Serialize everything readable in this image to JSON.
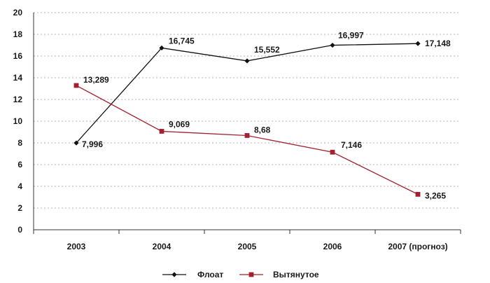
{
  "chart_data": {
    "type": "line",
    "categories": [
      "2003",
      "2004",
      "2005",
      "2006",
      "2007 (прогноз)"
    ],
    "series": [
      {
        "name": "Флоат",
        "values": [
          7.996,
          16.745,
          15.552,
          16.997,
          17.148
        ],
        "labels": [
          "7,996",
          "16,745",
          "15,552",
          "16,997",
          "17,148"
        ],
        "color": "#111111",
        "marker": "diamond"
      },
      {
        "name": "Вытянутое",
        "values": [
          13.289,
          9.069,
          8.68,
          7.146,
          3.265
        ],
        "labels": [
          "13,289",
          "9,069",
          "8,68",
          "7,146",
          "3,265"
        ],
        "color": "#a3202f",
        "marker": "square"
      }
    ],
    "ylim": [
      0,
      20
    ],
    "yticks": [
      0,
      2,
      4,
      6,
      8,
      10,
      12,
      14,
      16,
      18,
      20
    ],
    "grid": true,
    "legend": "bottom-center",
    "title": "",
    "xlabel": "",
    "ylabel": ""
  }
}
